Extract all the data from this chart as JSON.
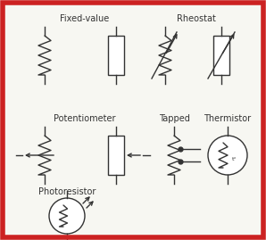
{
  "background_color": "#f7f7f2",
  "border_color": "#cc2222",
  "border_width": 4,
  "line_color": "#333333",
  "labels": {
    "fixed_value": "Fixed-value",
    "rheostat": "Rheostat",
    "potentiometer": "Potentiometer",
    "tapped": "Tapped",
    "thermistor": "Thermistor",
    "photoresistor": "Photoresistor"
  },
  "label_fontsize": 7.0,
  "figsize": [
    2.98,
    2.69
  ],
  "dpi": 100
}
